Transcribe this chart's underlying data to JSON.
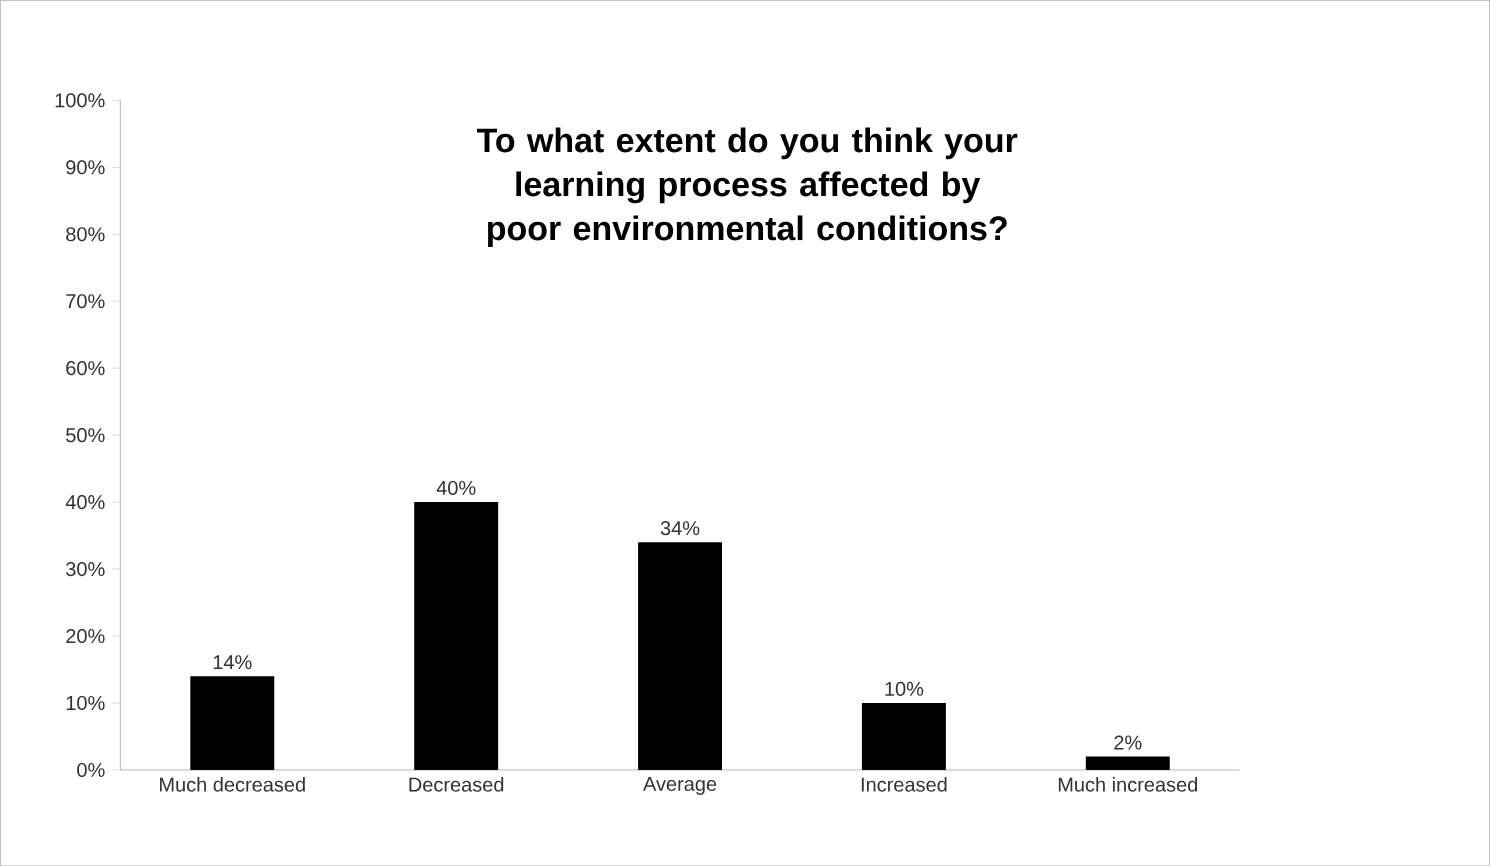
{
  "chart_data": {
    "type": "bar",
    "title": "To what extent do you think your learning process affected by poor environmental conditions?",
    "categories": [
      "Much decreased",
      "Decreased",
      "Average",
      "Increased",
      "Much increased"
    ],
    "values": [
      14,
      40,
      34,
      10,
      2
    ],
    "value_labels": [
      "14%",
      "40%",
      "34%",
      "10%",
      "2%"
    ],
    "color": "#000000",
    "ylim": [
      0,
      100
    ],
    "yticks": [
      {
        "value": 0,
        "label": "0%"
      },
      {
        "value": 10,
        "label": "10%"
      },
      {
        "value": 20,
        "label": "20%"
      },
      {
        "value": 30,
        "label": "30%"
      },
      {
        "value": 40,
        "label": "40%"
      },
      {
        "value": 50,
        "label": "50%"
      },
      {
        "value": 60,
        "label": "60%"
      },
      {
        "value": 70,
        "label": "70%"
      },
      {
        "value": 80,
        "label": "80%"
      },
      {
        "value": 90,
        "label": "90%"
      },
      {
        "value": 100,
        "label": "100%"
      }
    ],
    "grid": false
  }
}
